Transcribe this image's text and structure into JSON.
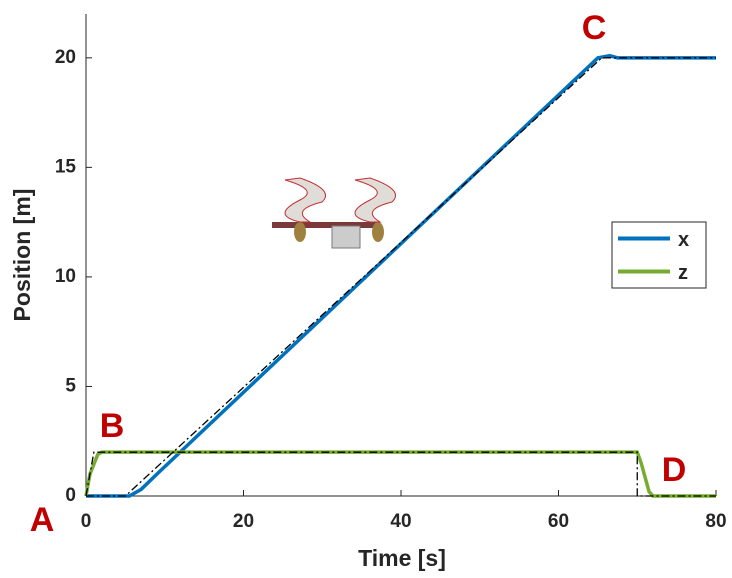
{
  "chart_data": {
    "type": "line",
    "xlabel": "Time [s]",
    "ylabel": "Position [m]",
    "xlim": [
      0,
      80
    ],
    "xticks": [
      0,
      20,
      40,
      60,
      80
    ],
    "ylim": [
      0,
      22
    ],
    "yticks": [
      0,
      5,
      10,
      15,
      20
    ],
    "grid": false,
    "legend": "right",
    "annotations": [
      "A",
      "B",
      "C",
      "D"
    ],
    "series": [
      {
        "name": "x",
        "color": "#0072bd",
        "x": [
          0,
          5.5,
          7,
          9,
          65,
          66.5,
          67.5,
          69,
          80
        ],
        "values": [
          0,
          0,
          0.3,
          1.0,
          20,
          20.1,
          20,
          20,
          20
        ]
      },
      {
        "name": "z",
        "color": "#77ac30",
        "x": [
          0,
          0.5,
          1.5,
          2,
          70,
          70.5,
          71.5,
          72,
          80
        ],
        "values": [
          0,
          1,
          1.9,
          2,
          2,
          1.5,
          0.2,
          0,
          0
        ]
      },
      {
        "color": "#000000",
        "x": [
          0,
          5,
          65.5,
          80
        ],
        "values": [
          0,
          0,
          20,
          20
        ]
      },
      {
        "color": "#000000",
        "x": [
          0,
          1,
          70,
          70,
          80
        ],
        "values": [
          0,
          2,
          2,
          0,
          0
        ]
      }
    ]
  }
}
